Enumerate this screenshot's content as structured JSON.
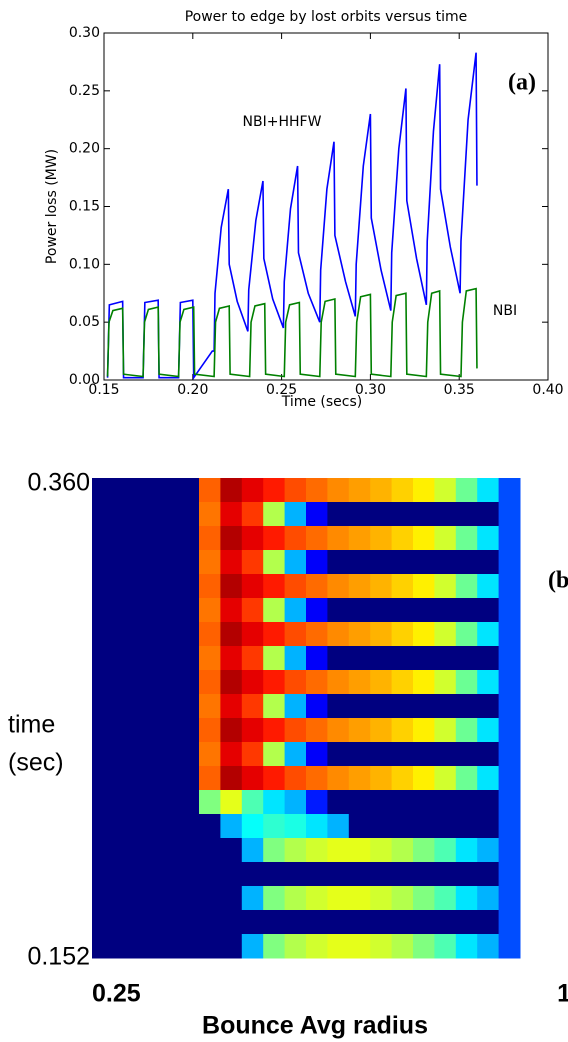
{
  "chart_data": [
    {
      "type": "line",
      "title": "Power to edge by lost orbits versus time",
      "xlabel": "Time (secs)",
      "ylabel": "Power loss (MW)",
      "xlim": [
        0.15,
        0.4
      ],
      "ylim": [
        0,
        0.3
      ],
      "xticks": [
        0.15,
        {
          "value": 0.2,
          "label": "0.20"
        },
        0.25,
        {
          "value": 0.3,
          "label": "0.30"
        },
        0.35,
        {
          "value": 0.4,
          "label": "0.40"
        }
      ],
      "yticks": [
        {
          "value": 0,
          "label": "0.00"
        },
        0.05,
        {
          "value": 0.1,
          "label": "0.10"
        },
        0.15,
        {
          "value": 0.2,
          "label": "0.20"
        },
        0.25,
        {
          "value": 0.3,
          "label": "0.30"
        }
      ],
      "annotations": [
        "NBI+HHFW",
        "NBI",
        "(a)"
      ],
      "series": [
        {
          "name": "NBI+HHFW",
          "color": "#0000ff",
          "x": [
            0.152,
            0.153,
            0.1605,
            0.161,
            0.172,
            0.173,
            0.1805,
            0.181,
            0.192,
            0.193,
            0.2,
            0.2005,
            0.211,
            0.212,
            0.2125,
            0.216,
            0.22,
            0.2205,
            0.225,
            0.231,
            0.2315,
            0.2355,
            0.2395,
            0.24,
            0.245,
            0.251,
            0.2515,
            0.255,
            0.259,
            0.2595,
            0.265,
            0.2715,
            0.272,
            0.2755,
            0.2795,
            0.28,
            0.286,
            0.2915,
            0.292,
            0.296,
            0.3,
            0.3005,
            0.306,
            0.3115,
            0.312,
            0.316,
            0.32,
            0.3205,
            0.326,
            0.3315,
            0.332,
            0.3355,
            0.339,
            0.3395,
            0.345,
            0.3505,
            0.351,
            0.355,
            0.3595,
            0.36
          ],
          "values": [
            0.002,
            0.065,
            0.068,
            0.002,
            0.002,
            0.067,
            0.069,
            0.002,
            0.002,
            0.067,
            0.069,
            0.002,
            0.025,
            0.025,
            0.075,
            0.132,
            0.165,
            0.1,
            0.068,
            0.042,
            0.078,
            0.138,
            0.172,
            0.105,
            0.07,
            0.045,
            0.085,
            0.148,
            0.185,
            0.11,
            0.075,
            0.05,
            0.095,
            0.165,
            0.206,
            0.125,
            0.085,
            0.055,
            0.1,
            0.185,
            0.23,
            0.14,
            0.095,
            0.06,
            0.11,
            0.2,
            0.252,
            0.155,
            0.105,
            0.065,
            0.12,
            0.215,
            0.273,
            0.165,
            0.115,
            0.075,
            0.12,
            0.225,
            0.283,
            0.168
          ]
        },
        {
          "name": "NBI",
          "color": "#008000",
          "x": [
            0.152,
            0.1528,
            0.155,
            0.1605,
            0.161,
            0.172,
            0.1728,
            0.175,
            0.1805,
            0.181,
            0.192,
            0.1928,
            0.195,
            0.2005,
            0.201,
            0.212,
            0.2128,
            0.215,
            0.2205,
            0.221,
            0.232,
            0.2328,
            0.235,
            0.2405,
            0.241,
            0.2515,
            0.2523,
            0.2545,
            0.26,
            0.2605,
            0.2715,
            0.2723,
            0.2745,
            0.28,
            0.2805,
            0.2915,
            0.2923,
            0.2945,
            0.3,
            0.3005,
            0.3115,
            0.3123,
            0.3145,
            0.32,
            0.3205,
            0.3315,
            0.3323,
            0.3345,
            0.339,
            0.3395,
            0.351,
            0.3518,
            0.354,
            0.3595,
            0.36
          ],
          "values": [
            0.003,
            0.05,
            0.06,
            0.062,
            0.005,
            0.003,
            0.05,
            0.061,
            0.063,
            0.005,
            0.003,
            0.05,
            0.061,
            0.063,
            0.005,
            0.003,
            0.05,
            0.062,
            0.064,
            0.005,
            0.003,
            0.05,
            0.064,
            0.066,
            0.005,
            0.003,
            0.05,
            0.065,
            0.067,
            0.005,
            0.003,
            0.05,
            0.068,
            0.07,
            0.005,
            0.003,
            0.05,
            0.072,
            0.074,
            0.005,
            0.003,
            0.05,
            0.073,
            0.075,
            0.005,
            0.003,
            0.05,
            0.075,
            0.077,
            0.005,
            0.003,
            0.05,
            0.077,
            0.079,
            0.01
          ]
        }
      ]
    },
    {
      "type": "heatmap",
      "xlabel": "Bounce Avg radius",
      "ylabel": [
        "time",
        "(sec)"
      ],
      "annotations": [
        "(b"
      ],
      "colormap": "jet",
      "xlim": [
        0.25,
        0.93
      ],
      "ylim": [
        0.152,
        0.36
      ],
      "xticks": [
        0.25,
        {
          "value": 1.0,
          "label": "1"
        }
      ],
      "yticks": [
        {
          "value": 0.152,
          "label": "0.152"
        },
        {
          "value": 0.36,
          "label": "0.360"
        }
      ],
      "z": [
        [
          0,
          0,
          0,
          0,
          0,
          0.78,
          0.95,
          0.9,
          0.85,
          0.8,
          0.77,
          0.74,
          0.72,
          0.7,
          0.67,
          0.64,
          0.58,
          0.48,
          0.35,
          0.2
        ],
        [
          0,
          0,
          0,
          0,
          0,
          0.76,
          0.9,
          0.82,
          0.55,
          0.3,
          0.12,
          0,
          0,
          0,
          0,
          0,
          0,
          0,
          0,
          0.2
        ],
        [
          0,
          0,
          0,
          0,
          0,
          0.78,
          0.95,
          0.9,
          0.85,
          0.8,
          0.77,
          0.74,
          0.72,
          0.7,
          0.67,
          0.64,
          0.58,
          0.48,
          0.35,
          0.2
        ],
        [
          0,
          0,
          0,
          0,
          0,
          0.76,
          0.9,
          0.82,
          0.55,
          0.3,
          0.12,
          0,
          0,
          0,
          0,
          0,
          0,
          0,
          0,
          0.2
        ],
        [
          0,
          0,
          0,
          0,
          0,
          0.78,
          0.95,
          0.9,
          0.85,
          0.8,
          0.77,
          0.74,
          0.72,
          0.7,
          0.67,
          0.64,
          0.58,
          0.48,
          0.35,
          0.2
        ],
        [
          0,
          0,
          0,
          0,
          0,
          0.76,
          0.9,
          0.82,
          0.55,
          0.3,
          0.12,
          0,
          0,
          0,
          0,
          0,
          0,
          0,
          0,
          0.2
        ],
        [
          0,
          0,
          0,
          0,
          0,
          0.78,
          0.95,
          0.9,
          0.85,
          0.8,
          0.77,
          0.74,
          0.72,
          0.7,
          0.67,
          0.64,
          0.58,
          0.48,
          0.35,
          0.2
        ],
        [
          0,
          0,
          0,
          0,
          0,
          0.76,
          0.9,
          0.82,
          0.55,
          0.3,
          0.12,
          0,
          0,
          0,
          0,
          0,
          0,
          0,
          0,
          0.2
        ],
        [
          0,
          0,
          0,
          0,
          0,
          0.78,
          0.95,
          0.9,
          0.85,
          0.8,
          0.77,
          0.74,
          0.72,
          0.7,
          0.67,
          0.64,
          0.58,
          0.48,
          0.35,
          0.2
        ],
        [
          0,
          0,
          0,
          0,
          0,
          0.76,
          0.9,
          0.82,
          0.55,
          0.3,
          0.12,
          0,
          0,
          0,
          0,
          0,
          0,
          0,
          0,
          0.2
        ],
        [
          0,
          0,
          0,
          0,
          0,
          0.78,
          0.95,
          0.9,
          0.85,
          0.8,
          0.77,
          0.74,
          0.72,
          0.7,
          0.67,
          0.64,
          0.58,
          0.48,
          0.35,
          0.2
        ],
        [
          0,
          0,
          0,
          0,
          0,
          0.76,
          0.9,
          0.82,
          0.55,
          0.3,
          0.12,
          0,
          0,
          0,
          0,
          0,
          0,
          0,
          0,
          0.2
        ],
        [
          0,
          0,
          0,
          0,
          0,
          0.78,
          0.95,
          0.9,
          0.85,
          0.8,
          0.77,
          0.74,
          0.72,
          0.7,
          0.67,
          0.64,
          0.58,
          0.48,
          0.35,
          0.2
        ],
        [
          0,
          0,
          0,
          0,
          0,
          0.5,
          0.6,
          0.45,
          0.35,
          0.3,
          0.15,
          0,
          0,
          0,
          0,
          0,
          0,
          0,
          0,
          0.2
        ],
        [
          0,
          0,
          0,
          0,
          0,
          0,
          0.3,
          0.38,
          0.42,
          0.4,
          0.35,
          0.3,
          0,
          0,
          0,
          0,
          0,
          0,
          0,
          0.2
        ],
        [
          0,
          0,
          0,
          0,
          0,
          0,
          0,
          0.3,
          0.5,
          0.55,
          0.58,
          0.6,
          0.6,
          0.58,
          0.55,
          0.5,
          0.45,
          0.35,
          0.3,
          0.2
        ],
        [
          0,
          0,
          0,
          0,
          0,
          0,
          0,
          0,
          0,
          0,
          0,
          0,
          0,
          0,
          0,
          0,
          0,
          0,
          0,
          0.2
        ],
        [
          0,
          0,
          0,
          0,
          0,
          0,
          0,
          0.3,
          0.5,
          0.55,
          0.58,
          0.6,
          0.6,
          0.58,
          0.55,
          0.5,
          0.45,
          0.35,
          0.3,
          0.2
        ],
        [
          0,
          0,
          0,
          0,
          0,
          0,
          0,
          0,
          0,
          0,
          0,
          0,
          0,
          0,
          0,
          0,
          0,
          0,
          0,
          0.2
        ],
        [
          0,
          0,
          0,
          0,
          0,
          0,
          0,
          0.3,
          0.5,
          0.55,
          0.58,
          0.6,
          0.6,
          0.58,
          0.55,
          0.5,
          0.45,
          0.35,
          0.3,
          0.2
        ]
      ]
    }
  ]
}
